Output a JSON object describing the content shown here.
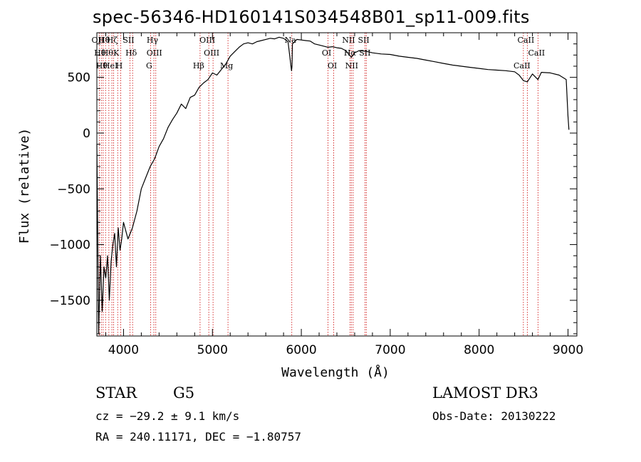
{
  "chart_data": {
    "type": "line",
    "title": "spec-56346-HD160141S034548B01_sp11-009.fits",
    "xlabel": "Wavelength (Å)",
    "ylabel": "Flux (relative)",
    "xlim": [
      3700,
      9100
    ],
    "ylim": [
      -1820,
      900
    ],
    "xticks": [
      4000,
      5000,
      6000,
      7000,
      8000,
      9000
    ],
    "yticks": [
      -1500,
      -1000,
      -500,
      0,
      500
    ],
    "series": [
      {
        "x": [
          3700,
          3720,
          3740,
          3760,
          3780,
          3800,
          3820,
          3840,
          3860,
          3880,
          3900,
          3920,
          3940,
          3960,
          3980,
          4000,
          4050,
          4100,
          4150,
          4200,
          4250,
          4300,
          4350,
          4400,
          4450,
          4500,
          4550,
          4600,
          4650,
          4700,
          4750,
          4800,
          4850,
          4900,
          4950,
          5000,
          5050,
          5100,
          5150,
          5200,
          5250,
          5300,
          5350,
          5400,
          5450,
          5500,
          5550,
          5600,
          5650,
          5700,
          5750,
          5800,
          5850,
          5890,
          5895,
          5900,
          5950,
          6000,
          6050,
          6100,
          6150,
          6200,
          6250,
          6300,
          6350,
          6400,
          6450,
          6500,
          6563,
          6600,
          6650,
          6700,
          6750,
          6800,
          6900,
          7000,
          7100,
          7200,
          7300,
          7400,
          7500,
          7600,
          7700,
          7800,
          7900,
          8000,
          8100,
          8200,
          8300,
          8400,
          8450,
          8498,
          8542,
          8600,
          8662,
          8700,
          8800,
          8900,
          8980,
          9000,
          9010
        ],
        "y": [
          -100,
          -1800,
          -1100,
          -1600,
          -1200,
          -1300,
          -1100,
          -1500,
          -1150,
          -1000,
          -900,
          -1200,
          -850,
          -1050,
          -950,
          -800,
          -950,
          -850,
          -700,
          -500,
          -400,
          -300,
          -230,
          -120,
          -50,
          50,
          120,
          180,
          260,
          220,
          320,
          340,
          410,
          450,
          480,
          540,
          520,
          570,
          620,
          690,
          730,
          770,
          800,
          810,
          800,
          820,
          830,
          840,
          850,
          845,
          860,
          850,
          820,
          560,
          600,
          800,
          840,
          835,
          830,
          825,
          800,
          790,
          780,
          770,
          775,
          765,
          760,
          740,
          680,
          720,
          740,
          735,
          730,
          720,
          710,
          705,
          690,
          680,
          670,
          655,
          640,
          625,
          610,
          600,
          590,
          580,
          570,
          565,
          560,
          550,
          520,
          470,
          460,
          530,
          480,
          545,
          540,
          520,
          480,
          150,
          30
        ]
      }
    ],
    "lines": [
      {
        "x": 3727,
        "label": "OII"
      },
      {
        "x": 3750,
        "label": "Hθ"
      },
      {
        "x": 3771,
        "label": "Hθ"
      },
      {
        "x": 3798,
        "label": "Hθ"
      },
      {
        "x": 3835,
        "label": "Hθ"
      },
      {
        "x": 3869,
        "label": "HeI"
      },
      {
        "x": 3889,
        "label": "Hζ"
      },
      {
        "x": 3934,
        "label": "K"
      },
      {
        "x": 3968,
        "label": "H"
      },
      {
        "x": 4072,
        "label": "SII"
      },
      {
        "x": 4102,
        "label": "Hδ"
      },
      {
        "x": 4304,
        "label": "G"
      },
      {
        "x": 4341,
        "label": "Hγ"
      },
      {
        "x": 4363,
        "label": "OIII"
      },
      {
        "x": 4861,
        "label": "Hβ"
      },
      {
        "x": 4959,
        "label": "OIII"
      },
      {
        "x": 5007,
        "label": "OIII"
      },
      {
        "x": 5175,
        "label": "Mg"
      },
      {
        "x": 5893,
        "label": "Na"
      },
      {
        "x": 6300,
        "label": "OI"
      },
      {
        "x": 6364,
        "label": "OI"
      },
      {
        "x": 6548,
        "label": "NII"
      },
      {
        "x": 6563,
        "label": "Hα"
      },
      {
        "x": 6583,
        "label": "NII"
      },
      {
        "x": 6717,
        "label": "SII"
      },
      {
        "x": 6731,
        "label": "SII"
      },
      {
        "x": 8498,
        "label": "CaII"
      },
      {
        "x": 8542,
        "label": "CaII"
      },
      {
        "x": 8662,
        "label": "CaII"
      }
    ],
    "grid": false,
    "line_color": "#000000",
    "marker_color": "#cc0000"
  },
  "footer": {
    "object_class": "STAR",
    "subclass": "G5",
    "survey": "LAMOST DR3",
    "redshift": "cz = −29.2 ± 9.1 km/s",
    "obs_date": "Obs-Date: 20130222",
    "coords": "RA = 240.11171, DEC =  −1.80757"
  }
}
